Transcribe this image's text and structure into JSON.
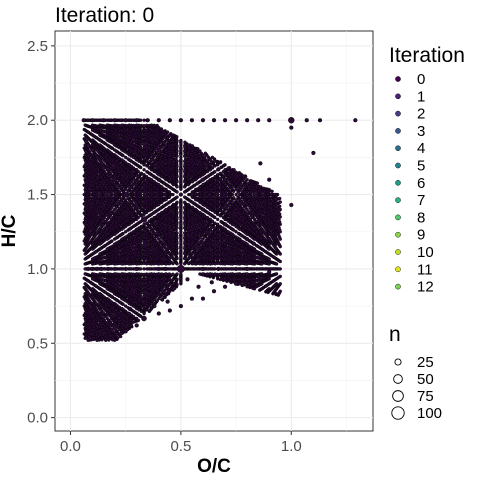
{
  "chart_data": {
    "type": "scatter",
    "title": "Iteration: 0",
    "xlabel": "O/C",
    "ylabel": "H/C",
    "xlim": [
      -0.07,
      1.37
    ],
    "ylim": [
      -0.09,
      2.6
    ],
    "x_ticks": [
      "0.0",
      "0.5",
      "1.0"
    ],
    "x_tick_values": [
      0,
      0.5,
      1.0
    ],
    "y_ticks": [
      "0.0",
      "0.5",
      "1.0",
      "1.5",
      "2.0",
      "2.5"
    ],
    "y_tick_values": [
      0,
      0.5,
      1.0,
      1.5,
      2.0,
      2.5
    ],
    "grid": true,
    "legend_position": "right",
    "color_legend": {
      "title": "Iteration",
      "entries": [
        "0",
        "1",
        "2",
        "3",
        "4",
        "5",
        "6",
        "7",
        "8",
        "9",
        "10",
        "11",
        "12"
      ],
      "colors": [
        "#440154",
        "#482173",
        "#433E85",
        "#38598C",
        "#2D708E",
        "#25858E",
        "#1E9B8A",
        "#2BB07F",
        "#51C56A",
        "#85D54A",
        "#C2DF23",
        "#E3E418",
        "#7AD151"
      ]
    },
    "size_legend": {
      "title": "n",
      "entries": [
        "25",
        "50",
        "75",
        "100"
      ],
      "values": [
        25,
        50,
        75,
        100
      ]
    },
    "point_color": "#2a0b35",
    "series": [
      {
        "name": "0",
        "points": [
          [
            0.06,
            2.0
          ],
          [
            0.1,
            2.0
          ],
          [
            0.15,
            2.0
          ],
          [
            0.2,
            2.0
          ],
          [
            0.25,
            2.0
          ],
          [
            0.3,
            2.0
          ],
          [
            0.35,
            2.0
          ],
          [
            0.4,
            2.0
          ],
          [
            0.45,
            2.0
          ],
          [
            0.5,
            2.0
          ],
          [
            0.55,
            2.0
          ],
          [
            0.6,
            2.0
          ],
          [
            0.65,
            2.0
          ],
          [
            0.7,
            2.0
          ],
          [
            0.75,
            2.0
          ],
          [
            0.8,
            2.0
          ],
          [
            0.85,
            2.0
          ],
          [
            0.9,
            2.0
          ],
          [
            1.0,
            2.0
          ],
          [
            1.07,
            2.0
          ],
          [
            1.13,
            2.0
          ],
          [
            1.29,
            2.0
          ],
          [
            1.0,
            1.95
          ],
          [
            1.1,
            1.78
          ],
          [
            1.0,
            1.43
          ],
          [
            0.5,
            1.0
          ],
          [
            0.33,
            1.33
          ],
          [
            0.25,
            1.5
          ],
          [
            0.2,
            1.6
          ],
          [
            0.17,
            1.67
          ],
          [
            0.14,
            1.71
          ],
          [
            0.12,
            1.75
          ],
          [
            0.1,
            1.8
          ],
          [
            0.08,
            1.83
          ],
          [
            0.0714,
            1.857
          ],
          [
            0.33,
            0.67
          ],
          [
            0.25,
            1.0
          ],
          [
            0.67,
            1.0
          ],
          [
            0.75,
            1.0
          ],
          [
            0.2,
            1.0
          ],
          [
            0.17,
            1.0
          ],
          [
            0.14,
            1.0
          ],
          [
            0.12,
            1.0
          ],
          [
            0.1,
            1.0
          ],
          [
            0.08,
            1.0
          ],
          [
            0.3,
            1.0
          ],
          [
            0.4,
            1.0
          ],
          [
            0.43,
            1.0
          ],
          [
            0.6,
            1.0
          ],
          [
            0.57,
            1.14
          ],
          [
            0.8,
            1.0
          ],
          [
            0.2,
            0.6
          ],
          [
            0.18,
            0.55
          ],
          [
            0.25,
            0.58
          ],
          [
            0.3,
            0.62
          ],
          [
            0.4,
            0.7
          ],
          [
            0.5,
            0.75
          ],
          [
            0.45,
            0.72
          ],
          [
            0.55,
            0.8
          ],
          [
            0.6,
            0.8
          ],
          [
            0.65,
            0.85
          ],
          [
            0.7,
            0.88
          ],
          [
            0.75,
            0.9
          ],
          [
            0.8,
            0.93
          ],
          [
            0.85,
            0.95
          ],
          [
            0.9,
            0.98
          ],
          [
            0.58,
            0.88
          ],
          [
            0.7,
            1.3
          ],
          [
            0.75,
            1.4
          ],
          [
            0.8,
            1.5
          ],
          [
            0.9,
            1.6
          ],
          [
            0.93,
            1.47
          ],
          [
            0.86,
            1.71
          ],
          [
            0.6,
            1.4
          ],
          [
            0.55,
            1.5
          ],
          [
            0.5,
            1.5
          ],
          [
            0.5,
            1.67
          ],
          [
            0.45,
            1.6
          ],
          [
            0.4,
            1.6
          ],
          [
            0.4,
            1.8
          ],
          [
            0.43,
            1.71
          ],
          [
            0.62,
            1.25
          ],
          [
            0.67,
            1.17
          ],
          [
            0.63,
            1.5
          ],
          [
            0.7,
            1.6
          ],
          [
            0.67,
            1.67
          ],
          [
            0.6,
            1.6
          ],
          [
            0.8,
            1.2
          ],
          [
            0.83,
            1.17
          ],
          [
            0.85,
            1.3
          ],
          [
            0.9,
            1.2
          ],
          [
            0.88,
            1.38
          ],
          [
            0.71,
            1.14
          ],
          [
            0.78,
            1.33
          ],
          [
            0.38,
            0.75
          ],
          [
            0.33,
            0.78
          ],
          [
            0.29,
            0.86
          ],
          [
            0.27,
            0.73
          ],
          [
            0.22,
            0.67
          ],
          [
            0.44,
            0.78
          ],
          [
            0.36,
            0.91
          ],
          [
            0.47,
            0.87
          ],
          [
            0.53,
            0.93
          ],
          [
            0.64,
            0.91
          ]
        ]
      }
    ],
    "point_sizes": {
      "2.0": 25,
      "1.0": 25,
      "0.5,1.0": 100,
      "0.33,1.33": 50,
      "1.0,2.0": 50,
      "0.33,0.67": 50
    }
  }
}
